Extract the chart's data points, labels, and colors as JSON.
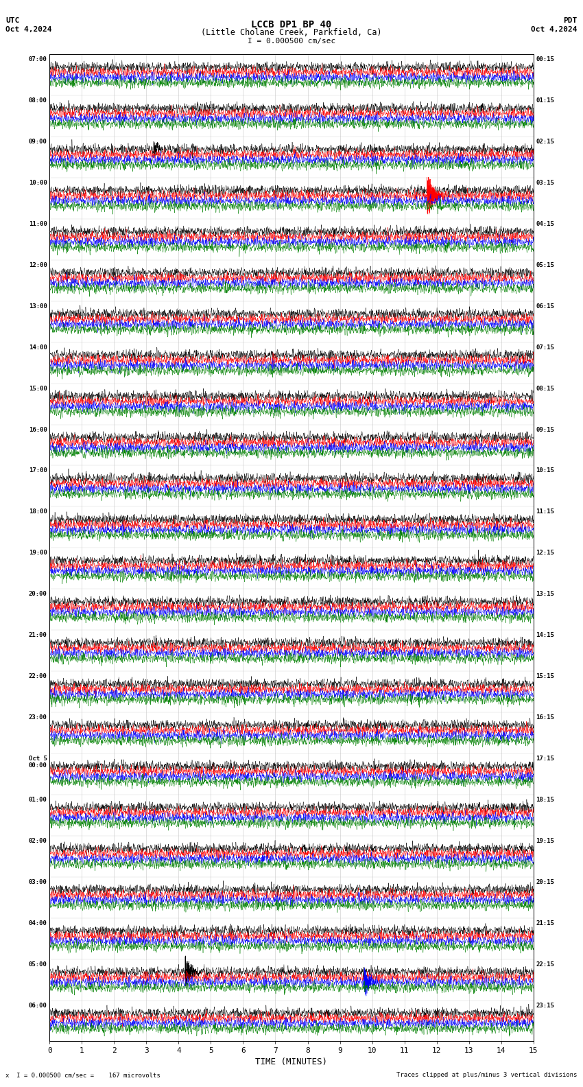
{
  "title_line1": "LCCB DP1 BP 40",
  "title_line2": "(Little Cholane Creek, Parkfield, Ca)",
  "scale_label": "I = 0.000500 cm/sec",
  "utc_label": "UTC",
  "pdt_label": "PDT",
  "date_left": "Oct 4,2024",
  "date_right": "Oct 4,2024",
  "bottom_left": "x  I = 0.000500 cm/sec =    167 microvolts",
  "bottom_right": "Traces clipped at plus/minus 3 vertical divisions",
  "xlabel": "TIME (MINUTES)",
  "left_times": [
    "07:00",
    "08:00",
    "09:00",
    "10:00",
    "11:00",
    "12:00",
    "13:00",
    "14:00",
    "15:00",
    "16:00",
    "17:00",
    "18:00",
    "19:00",
    "20:00",
    "21:00",
    "22:00",
    "23:00",
    "Oct 5\n00:00",
    "01:00",
    "02:00",
    "03:00",
    "04:00",
    "05:00",
    "06:00"
  ],
  "right_times": [
    "00:15",
    "01:15",
    "02:15",
    "03:15",
    "04:15",
    "05:15",
    "06:15",
    "07:15",
    "08:15",
    "09:15",
    "10:15",
    "11:15",
    "12:15",
    "13:15",
    "14:15",
    "15:15",
    "16:15",
    "17:15",
    "18:15",
    "19:15",
    "20:15",
    "21:15",
    "22:15",
    "23:15"
  ],
  "n_rows": 24,
  "traces_per_row": 4,
  "colors": [
    "black",
    "red",
    "blue",
    "green"
  ],
  "bg_color": "#ffffff",
  "plot_bg": "#ffffff",
  "xmin": 0,
  "xmax": 15,
  "xticks": [
    0,
    1,
    2,
    3,
    4,
    5,
    6,
    7,
    8,
    9,
    10,
    11,
    12,
    13,
    14,
    15
  ],
  "grid_color": "#bbbbbb"
}
